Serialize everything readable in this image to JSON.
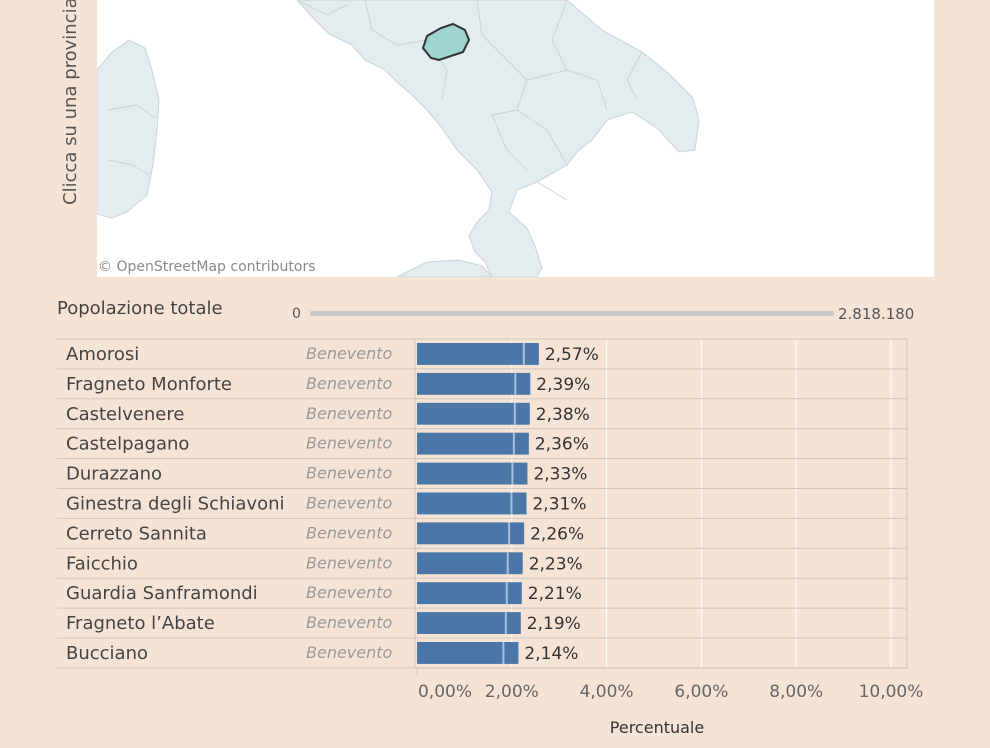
{
  "sidebar_label": "Clicca su una provincia",
  "map": {
    "credit": "© OpenStreetMap contributors",
    "highlight_color": "#9ed4cf",
    "region_color": "#e3ecef",
    "sea_color": "#ffffff"
  },
  "population_filter": {
    "label": "Popolazione totale",
    "min_label": "0",
    "max_label": "2.818.180"
  },
  "chart_data": {
    "type": "bar",
    "orientation": "horizontal",
    "xlabel": "Percentuale",
    "xlim": [
      0,
      10
    ],
    "ticks": [
      "0,00%",
      "2,00%",
      "4,00%",
      "6,00%",
      "8,00%",
      "10,00%"
    ],
    "bar_color": "#4a76a8",
    "rows": [
      {
        "comune": "Amorosi",
        "provincia": "Benevento",
        "value": 2.57,
        "label": "2,57%"
      },
      {
        "comune": "Fragneto Monforte",
        "provincia": "Benevento",
        "value": 2.39,
        "label": "2,39%"
      },
      {
        "comune": "Castelvenere",
        "provincia": "Benevento",
        "value": 2.38,
        "label": "2,38%"
      },
      {
        "comune": "Castelpagano",
        "provincia": "Benevento",
        "value": 2.36,
        "label": "2,36%"
      },
      {
        "comune": "Durazzano",
        "provincia": "Benevento",
        "value": 2.33,
        "label": "2,33%"
      },
      {
        "comune": "Ginestra degli Schiavoni",
        "provincia": "Benevento",
        "value": 2.31,
        "label": "2,31%"
      },
      {
        "comune": "Cerreto Sannita",
        "provincia": "Benevento",
        "value": 2.26,
        "label": "2,26%"
      },
      {
        "comune": "Faicchio",
        "provincia": "Benevento",
        "value": 2.23,
        "label": "2,23%"
      },
      {
        "comune": "Guardia Sanframondi",
        "provincia": "Benevento",
        "value": 2.21,
        "label": "2,21%"
      },
      {
        "comune": "Fragneto l’Abate",
        "provincia": "Benevento",
        "value": 2.19,
        "label": "2,19%"
      },
      {
        "comune": "Bucciano",
        "provincia": "Benevento",
        "value": 2.14,
        "label": "2,14%"
      }
    ]
  }
}
